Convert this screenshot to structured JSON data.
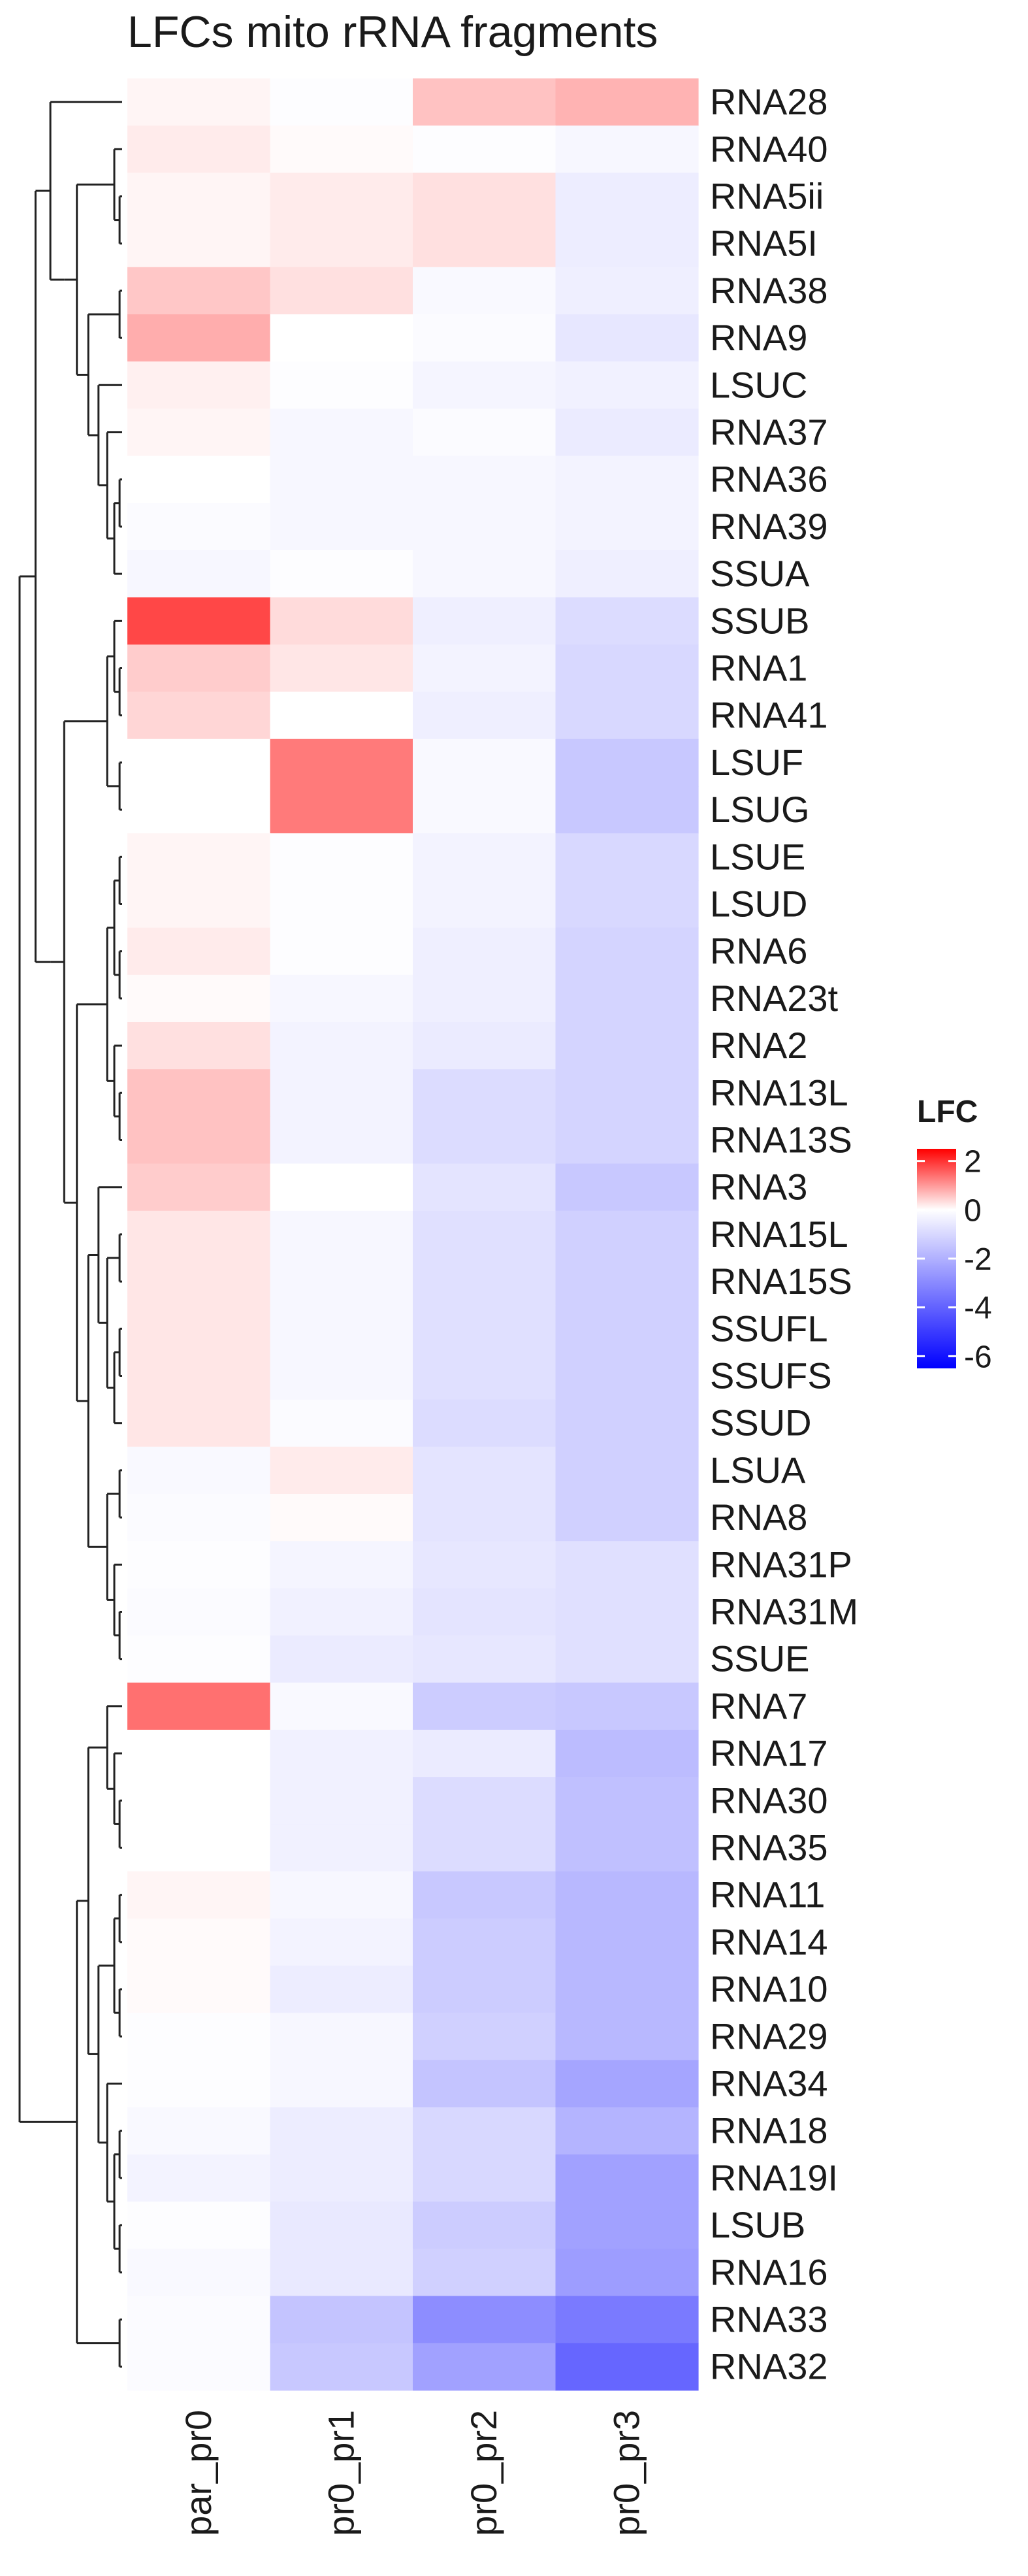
{
  "title": "LFCs mito rRNA fragments",
  "chart_data": {
    "type": "heatmap",
    "title": "LFCs mito rRNA fragments",
    "columns": [
      "par_pr0",
      "pr0_pr1",
      "pr0_pr2",
      "pr0_pr3"
    ],
    "rows": [
      "RNA28",
      "RNA40",
      "RNA5ii",
      "RNA5I",
      "RNA38",
      "RNA9",
      "LSUC",
      "RNA37",
      "RNA36",
      "RNA39",
      "SSUA",
      "SSUB",
      "RNA1",
      "RNA41",
      "LSUF",
      "LSUG",
      "LSUE",
      "LSUD",
      "RNA6",
      "RNA23t",
      "RNA2",
      "RNA13L",
      "RNA13S",
      "RNA3",
      "RNA15L",
      "RNA15S",
      "SSUFL",
      "SSUFS",
      "SSUD",
      "LSUA",
      "RNA8",
      "RNA31P",
      "RNA31M",
      "SSUE",
      "RNA7",
      "RNA17",
      "RNA30",
      "RNA35",
      "RNA11",
      "RNA14",
      "RNA10",
      "RNA29",
      "RNA34",
      "RNA18",
      "RNA19I",
      "LSUB",
      "RNA16",
      "RNA33",
      "RNA32"
    ],
    "values": [
      [
        0.1,
        -0.05,
        0.6,
        0.75
      ],
      [
        0.2,
        0.05,
        -0.05,
        -0.2
      ],
      [
        0.1,
        0.2,
        0.3,
        -0.45
      ],
      [
        0.1,
        0.2,
        0.3,
        -0.45
      ],
      [
        0.55,
        0.3,
        -0.15,
        -0.4
      ],
      [
        0.8,
        0.0,
        -0.1,
        -0.6
      ],
      [
        0.15,
        -0.05,
        -0.25,
        -0.35
      ],
      [
        0.1,
        -0.2,
        -0.1,
        -0.5
      ],
      [
        0.0,
        -0.2,
        -0.2,
        -0.3
      ],
      [
        -0.1,
        -0.2,
        -0.2,
        -0.3
      ],
      [
        -0.2,
        -0.05,
        -0.2,
        -0.4
      ],
      [
        1.8,
        0.35,
        -0.4,
        -0.9
      ],
      [
        0.5,
        0.25,
        -0.3,
        -1.0
      ],
      [
        0.4,
        0.0,
        -0.4,
        -1.0
      ],
      [
        0.0,
        1.3,
        -0.15,
        -1.4
      ],
      [
        0.0,
        1.3,
        -0.15,
        -1.4
      ],
      [
        0.1,
        -0.05,
        -0.3,
        -1.0
      ],
      [
        0.1,
        -0.05,
        -0.3,
        -1.0
      ],
      [
        0.2,
        -0.05,
        -0.4,
        -1.1
      ],
      [
        0.05,
        -0.2,
        -0.4,
        -1.1
      ],
      [
        0.3,
        -0.3,
        -0.5,
        -1.1
      ],
      [
        0.6,
        -0.3,
        -0.9,
        -1.1
      ],
      [
        0.6,
        -0.3,
        -0.9,
        -1.1
      ],
      [
        0.5,
        0.0,
        -0.7,
        -1.4
      ],
      [
        0.25,
        -0.2,
        -0.8,
        -1.2
      ],
      [
        0.25,
        -0.2,
        -0.8,
        -1.2
      ],
      [
        0.25,
        -0.2,
        -0.8,
        -1.2
      ],
      [
        0.25,
        -0.2,
        -0.8,
        -1.2
      ],
      [
        0.25,
        -0.1,
        -0.9,
        -1.2
      ],
      [
        -0.15,
        0.2,
        -0.7,
        -1.2
      ],
      [
        -0.1,
        0.05,
        -0.7,
        -1.2
      ],
      [
        -0.05,
        -0.25,
        -0.6,
        -0.8
      ],
      [
        -0.1,
        -0.35,
        -0.7,
        -0.8
      ],
      [
        -0.05,
        -0.5,
        -0.6,
        -0.8
      ],
      [
        1.4,
        -0.15,
        -1.3,
        -1.4
      ],
      [
        0.0,
        -0.35,
        -0.5,
        -1.7
      ],
      [
        0.0,
        -0.35,
        -0.9,
        -1.6
      ],
      [
        0.0,
        -0.35,
        -0.9,
        -1.6
      ],
      [
        0.1,
        -0.2,
        -1.4,
        -1.8
      ],
      [
        0.05,
        -0.3,
        -1.3,
        -1.8
      ],
      [
        0.05,
        -0.45,
        -1.3,
        -1.8
      ],
      [
        -0.05,
        -0.2,
        -1.2,
        -1.8
      ],
      [
        -0.05,
        -0.2,
        -1.5,
        -2.3
      ],
      [
        -0.15,
        -0.45,
        -1.0,
        -1.9
      ],
      [
        -0.3,
        -0.45,
        -1.0,
        -2.4
      ],
      [
        -0.05,
        -0.55,
        -1.3,
        -2.4
      ],
      [
        -0.15,
        -0.55,
        -1.2,
        -2.5
      ],
      [
        -0.1,
        -1.5,
        -2.9,
        -3.4
      ],
      [
        -0.1,
        -1.4,
        -2.4,
        -3.9
      ]
    ],
    "xlabel": "",
    "ylabel": "",
    "legend": {
      "title": "LFC",
      "ticks": [
        2,
        0,
        -2,
        -4,
        -6
      ],
      "range": [
        -6.5,
        2.5
      ],
      "colors": {
        "high": "#ff0000",
        "mid": "#ffffff",
        "low": "#0000ff"
      },
      "placement": "right"
    },
    "dendrogram": "left",
    "grid": false
  }
}
